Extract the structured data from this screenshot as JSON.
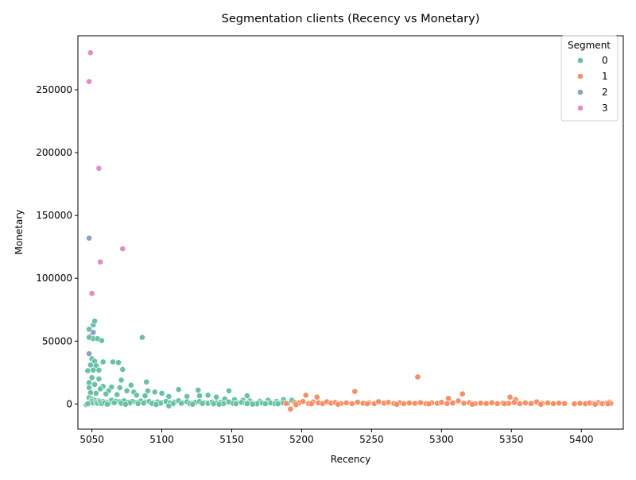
{
  "chart_data": {
    "type": "scatter",
    "title": "Segmentation clients (Recency vs Monetary)",
    "xlabel": "Recency",
    "ylabel": "Monetary",
    "xlim": [
      5040,
      5430
    ],
    "ylim": [
      -20000,
      293000
    ],
    "xticks": [
      "5050",
      "5100",
      "5150",
      "5200",
      "5250",
      "5300",
      "5350",
      "5400"
    ],
    "yticks": [
      "0",
      "50000",
      "100000",
      "150000",
      "200000",
      "250000"
    ],
    "grid": false,
    "legend": {
      "title": "Segment",
      "placement": "top-right",
      "entries": [
        "0",
        "1",
        "2",
        "3"
      ]
    },
    "series": [
      {
        "name": "0",
        "color": "#66c2a5",
        "points": [
          [
            5048,
            59500
          ],
          [
            5051,
            63000
          ],
          [
            5052,
            66000
          ],
          [
            5049,
            54000
          ],
          [
            5051,
            52000
          ],
          [
            5054,
            52000
          ],
          [
            5057,
            50500
          ],
          [
            5048,
            53000
          ],
          [
            5050,
            36000
          ],
          [
            5052,
            34000
          ],
          [
            5049,
            31000
          ],
          [
            5053,
            30500
          ],
          [
            5047,
            26500
          ],
          [
            5051,
            27000
          ],
          [
            5055,
            27000
          ],
          [
            5058,
            33500
          ],
          [
            5065,
            33500
          ],
          [
            5069,
            33000
          ],
          [
            5072,
            27500
          ],
          [
            5071,
            19000
          ],
          [
            5055,
            20000
          ],
          [
            5050,
            21000
          ],
          [
            5086,
            53000
          ],
          [
            5089,
            17500
          ],
          [
            5112,
            11500
          ],
          [
            5126,
            11000
          ],
          [
            5148,
            10500
          ],
          [
            5133,
            7000
          ],
          [
            5161,
            6500
          ],
          [
            5048,
            17000
          ],
          [
            5052,
            15500
          ],
          [
            5048,
            13000
          ],
          [
            5058,
            14000
          ],
          [
            5064,
            13500
          ],
          [
            5070,
            13000
          ],
          [
            5078,
            15000
          ],
          [
            5056,
            12000
          ],
          [
            5062,
            10500
          ],
          [
            5075,
            10500
          ],
          [
            5080,
            9500
          ],
          [
            5090,
            10500
          ],
          [
            5095,
            9500
          ],
          [
            5100,
            8500
          ],
          [
            5049,
            9000
          ],
          [
            5053,
            8500
          ],
          [
            5060,
            8000
          ],
          [
            5068,
            7500
          ],
          [
            5082,
            7000
          ],
          [
            5088,
            6500
          ],
          [
            5105,
            6000
          ],
          [
            5118,
            6000
          ],
          [
            5127,
            6500
          ],
          [
            5139,
            5500
          ],
          [
            5145,
            4000
          ],
          [
            5152,
            3500
          ],
          [
            5158,
            3000
          ],
          [
            5163,
            2500
          ],
          [
            5170,
            2200
          ],
          [
            5176,
            3000
          ],
          [
            5182,
            2000
          ],
          [
            5187,
            3500
          ],
          [
            5193,
            3000
          ],
          [
            5048,
            5000
          ],
          [
            5050,
            4000
          ],
          [
            5052,
            3000
          ],
          [
            5055,
            2500
          ],
          [
            5058,
            2000
          ],
          [
            5061,
            1500
          ],
          [
            5064,
            3000
          ],
          [
            5067,
            2200
          ],
          [
            5070,
            1800
          ],
          [
            5073,
            2600
          ],
          [
            5076,
            1400
          ],
          [
            5079,
            2000
          ],
          [
            5082,
            1200
          ],
          [
            5085,
            2400
          ],
          [
            5088,
            1600
          ],
          [
            5091,
            2000
          ],
          [
            5094,
            1100
          ],
          [
            5097,
            1700
          ],
          [
            5100,
            1300
          ],
          [
            5103,
            2100
          ],
          [
            5106,
            900
          ],
          [
            5109,
            1500
          ],
          [
            5112,
            2600
          ],
          [
            5115,
            1100
          ],
          [
            5118,
            1800
          ],
          [
            5121,
            700
          ],
          [
            5124,
            1300
          ],
          [
            5127,
            2000
          ],
          [
            5130,
            1100
          ],
          [
            5133,
            600
          ],
          [
            5136,
            1500
          ],
          [
            5139,
            900
          ],
          [
            5142,
            1200
          ],
          [
            5145,
            700
          ],
          [
            5148,
            1600
          ],
          [
            5151,
            500
          ],
          [
            5154,
            1000
          ],
          [
            5157,
            1300
          ],
          [
            5160,
            600
          ],
          [
            5163,
            900
          ],
          [
            5166,
            400
          ],
          [
            5169,
            1100
          ],
          [
            5172,
            700
          ],
          [
            5175,
            500
          ],
          [
            5178,
            800
          ],
          [
            5181,
            300
          ],
          [
            5184,
            600
          ],
          [
            5187,
            900
          ],
          [
            5190,
            400
          ],
          [
            5048,
            500
          ],
          [
            5049,
            1500
          ],
          [
            5050,
            2200
          ],
          [
            5051,
            800
          ],
          [
            5053,
            1200
          ],
          [
            5054,
            600
          ],
          [
            5056,
            1800
          ],
          [
            5057,
            300
          ],
          [
            5059,
            900
          ],
          [
            5062,
            400
          ],
          [
            5066,
            1000
          ],
          [
            5071,
            500
          ],
          [
            5077,
            800
          ],
          [
            5083,
            300
          ],
          [
            5087,
            700
          ],
          [
            5093,
            400
          ],
          [
            5099,
            600
          ],
          [
            5108,
            300
          ],
          [
            5114,
            500
          ],
          [
            5120,
            200
          ],
          [
            5129,
            400
          ],
          [
            5137,
            200
          ],
          [
            5144,
            300
          ],
          [
            5153,
            200
          ],
          [
            5161,
            300
          ],
          [
            5168,
            100
          ],
          [
            5174,
            200
          ],
          [
            5183,
            150
          ],
          [
            5046,
            -500
          ],
          [
            5047,
            100
          ],
          [
            5061,
            -200
          ],
          [
            5074,
            -300
          ],
          [
            5096,
            -400
          ],
          [
            5105,
            -1500
          ],
          [
            5122,
            -300
          ],
          [
            5141,
            -200
          ],
          [
            5165,
            -100
          ]
        ]
      },
      {
        "name": "1",
        "color": "#fc8d62",
        "points": [
          [
            5283,
            21500
          ],
          [
            5238,
            10000
          ],
          [
            5315,
            8000
          ],
          [
            5203,
            7000
          ],
          [
            5211,
            5500
          ],
          [
            5349,
            5500
          ],
          [
            5305,
            4500
          ],
          [
            5353,
            3500
          ],
          [
            5192,
            -4000
          ],
          [
            5189,
            500
          ],
          [
            5195,
            1200
          ],
          [
            5198,
            800
          ],
          [
            5201,
            2000
          ],
          [
            5205,
            400
          ],
          [
            5208,
            1600
          ],
          [
            5212,
            900
          ],
          [
            5215,
            300
          ],
          [
            5218,
            1800
          ],
          [
            5221,
            700
          ],
          [
            5224,
            1200
          ],
          [
            5228,
            400
          ],
          [
            5232,
            900
          ],
          [
            5236,
            300
          ],
          [
            5240,
            1500
          ],
          [
            5244,
            600
          ],
          [
            5248,
            1000
          ],
          [
            5252,
            300
          ],
          [
            5255,
            1900
          ],
          [
            5259,
            700
          ],
          [
            5262,
            1300
          ],
          [
            5266,
            400
          ],
          [
            5270,
            1000
          ],
          [
            5273,
            300
          ],
          [
            5277,
            800
          ],
          [
            5281,
            500
          ],
          [
            5285,
            1100
          ],
          [
            5289,
            300
          ],
          [
            5293,
            900
          ],
          [
            5297,
            500
          ],
          [
            5300,
            1300
          ],
          [
            5304,
            300
          ],
          [
            5308,
            800
          ],
          [
            5312,
            2500
          ],
          [
            5316,
            600
          ],
          [
            5320,
            1100
          ],
          [
            5324,
            300
          ],
          [
            5328,
            700
          ],
          [
            5332,
            400
          ],
          [
            5336,
            1000
          ],
          [
            5340,
            300
          ],
          [
            5344,
            800
          ],
          [
            5348,
            500
          ],
          [
            5352,
            1200
          ],
          [
            5356,
            300
          ],
          [
            5360,
            900
          ],
          [
            5364,
            400
          ],
          [
            5368,
            1700
          ],
          [
            5372,
            500
          ],
          [
            5376,
            900
          ],
          [
            5380,
            300
          ],
          [
            5384,
            700
          ],
          [
            5388,
            400
          ],
          [
            5399,
            500
          ],
          [
            5403,
            200
          ],
          [
            5406,
            800
          ],
          [
            5409,
            400
          ],
          [
            5412,
            1100
          ],
          [
            5415,
            300
          ],
          [
            5418,
            700
          ],
          [
            5420,
            1500
          ],
          [
            5421,
            400
          ],
          [
            5196,
            -500
          ],
          [
            5207,
            100
          ],
          [
            5226,
            -200
          ],
          [
            5247,
            200
          ],
          [
            5268,
            -300
          ],
          [
            5291,
            100
          ],
          [
            5322,
            -200
          ],
          [
            5345,
            200
          ],
          [
            5371,
            -300
          ],
          [
            5395,
            100
          ],
          [
            5410,
            -200
          ],
          [
            5419,
            100
          ]
        ]
      },
      {
        "name": "2",
        "color": "#8da0cb",
        "points": [
          [
            5048,
            132000
          ],
          [
            5051,
            57000
          ],
          [
            5048,
            40000
          ]
        ]
      },
      {
        "name": "3",
        "color": "#e78ac3",
        "points": [
          [
            5049,
            279500
          ],
          [
            5048,
            256500
          ],
          [
            5055,
            187500
          ],
          [
            5072,
            123500
          ],
          [
            5056,
            113000
          ],
          [
            5050,
            88000
          ]
        ]
      }
    ]
  }
}
